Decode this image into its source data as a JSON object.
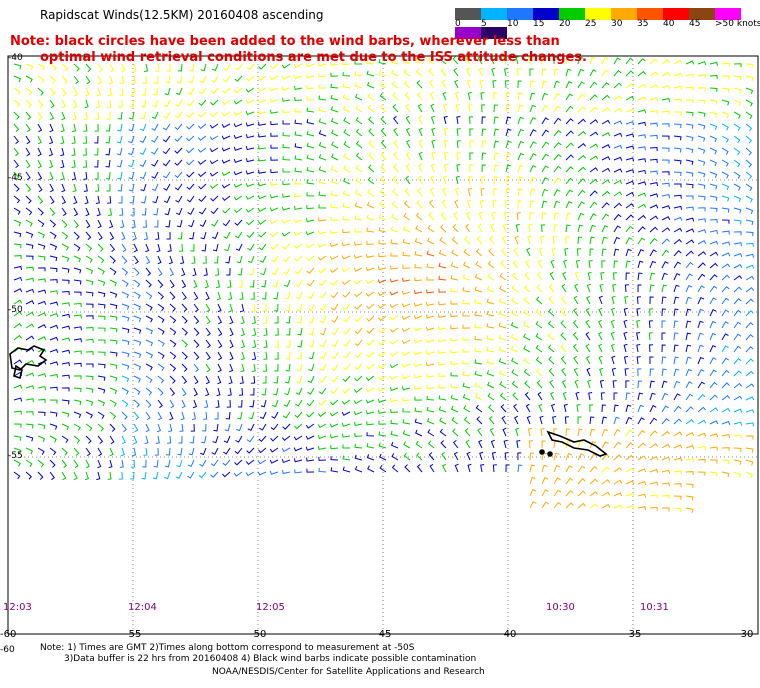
{
  "title": "Rapidscat Winds(12.5KM) 20160408 ascending",
  "red_note": {
    "line1": "Note: black circles have been added to the wind barbs, wherever less than",
    "line2": "optimal wind retrieval conditions are met due to the ISS attitude changes."
  },
  "color_scale": {
    "colors": [
      "#555555",
      "#00b4ff",
      "#1e78ff",
      "#0000cc",
      "#00cc00",
      "#ffff00",
      "#ffaa00",
      "#ff5500",
      "#ff0000",
      "#8b4513",
      "#ff00ff",
      "#9900cc",
      "#2a0066"
    ],
    "labels": [
      "0",
      "5",
      "10",
      "15",
      "20",
      "25",
      "30",
      "35",
      "40",
      "45",
      ">50 knots"
    ]
  },
  "latitude_labels": [
    "-40",
    "-45",
    "-50",
    "-55",
    "-60"
  ],
  "longitude_labels": [
    "-60",
    "-55",
    "-50",
    "-45",
    "-40",
    "-35",
    "-30"
  ],
  "time_labels": [
    "12:03",
    "12:04",
    "12:05",
    "10:30",
    "10:31"
  ],
  "footnote": {
    "line1": "Note: 1) Times are GMT 2)Times along bottom correspond to measurement at -50S",
    "line2": "3)Data buffer is 22 hrs from 20160408 4) Black wind barbs indicate possible contamination"
  },
  "credit": "NOAA/NESDIS/Center for Satellite Applications and Research",
  "map": {
    "lon_range": [
      -60,
      -30
    ],
    "lat_range": [
      -60,
      -40
    ],
    "wind_speed_units": "knots"
  }
}
